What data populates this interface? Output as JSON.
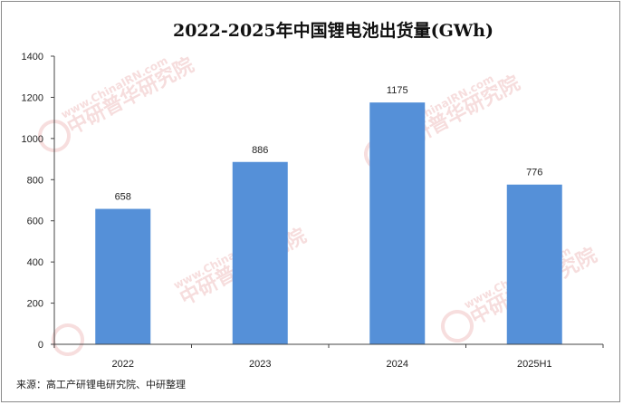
{
  "chart_data": {
    "type": "bar",
    "title": "2022-2025年中国锂电池出货量(GWh)",
    "categories": [
      "2022",
      "2023",
      "2024",
      "2025H1"
    ],
    "values": [
      658,
      886,
      1175,
      776
    ],
    "data_labels": [
      "658",
      "886",
      "1175",
      "776"
    ],
    "ylim": [
      0,
      1400
    ],
    "yticks": [
      "0",
      "200",
      "400",
      "600",
      "800",
      "1000",
      "1200",
      "1400"
    ],
    "bar_color": "#5590d8",
    "grid": false,
    "legend": "none"
  },
  "source_note": "来源：高工产研锂电研究院、中研整理",
  "watermark": {
    "url_text": "www.ChinaIRN.com",
    "brand_text": "中研普华研究院",
    "logo_text": "CIRN"
  }
}
